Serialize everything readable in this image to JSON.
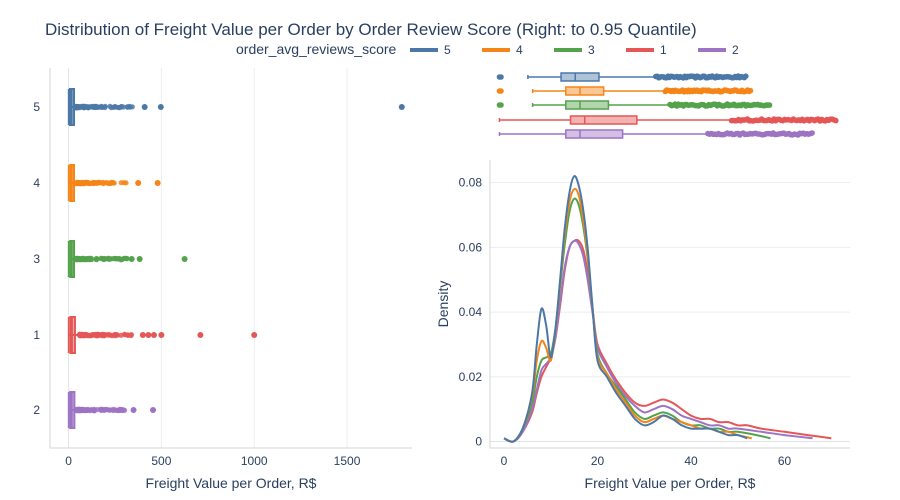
{
  "title": "Distribution of Freight Value per Order by Order Review Score (Right: to 0.95 Quantile)",
  "legend": {
    "title": "order_avg_reviews_score",
    "items": [
      {
        "label": "5",
        "color": "#4c78a8"
      },
      {
        "label": "4",
        "color": "#f58518"
      },
      {
        "label": "3",
        "color": "#54a24b"
      },
      {
        "label": "1",
        "color": "#e45756"
      },
      {
        "label": "2",
        "color": "#9d73c3"
      }
    ]
  },
  "chart_data": [
    {
      "type": "box",
      "orientation": "horizontal",
      "xlabel": "Freight Value per Order, R$",
      "xlim": [
        -100,
        1850
      ],
      "xticks": [
        0,
        500,
        1000,
        1500
      ],
      "categories": [
        "5",
        "4",
        "3",
        "1",
        "2"
      ],
      "grid": "vertical",
      "series": [
        {
          "name": "5",
          "color": "#4c78a8",
          "min": 0,
          "q1": 13,
          "median": 16,
          "q3": 24,
          "upper_fence": 40,
          "outlier_cluster_max": 345,
          "outliers": [
            410,
            497,
            1795
          ]
        },
        {
          "name": "4",
          "color": "#f58518",
          "min": 0,
          "q1": 14,
          "median": 17,
          "q3": 24,
          "upper_fence": 40,
          "outlier_cluster_max": 330,
          "outliers": [
            375,
            480
          ]
        },
        {
          "name": "3",
          "color": "#54a24b",
          "min": 0,
          "q1": 14,
          "median": 17,
          "q3": 24,
          "upper_fence": 40,
          "outlier_cluster_max": 320,
          "outliers": [
            340,
            383,
            625
          ]
        },
        {
          "name": "1",
          "color": "#e45756",
          "min": 0,
          "q1": 15,
          "median": 18,
          "q3": 29,
          "upper_fence": 60,
          "outlier_cluster_max": 360,
          "outliers": [
            400,
            430,
            460,
            500,
            710,
            1000
          ]
        },
        {
          "name": "2",
          "color": "#9d73c3",
          "min": 0,
          "q1": 14,
          "median": 17,
          "q3": 26,
          "upper_fence": 45,
          "outlier_cluster_max": 310,
          "outliers": [
            350,
            455
          ]
        }
      ]
    },
    {
      "type": "box",
      "orientation": "horizontal",
      "note_position": "marginal",
      "xlim": [
        -2,
        74
      ],
      "categories": [
        "5",
        "4",
        "3",
        "1",
        "2"
      ],
      "series": [
        {
          "name": "5",
          "color": "#4c78a8",
          "min": 0,
          "whisker_low": 6,
          "q1": 13,
          "median": 16,
          "q3": 21,
          "whisker_high": 33,
          "outlier_max": 52
        },
        {
          "name": "4",
          "color": "#f58518",
          "min": 0,
          "whisker_low": 7,
          "q1": 14,
          "median": 17,
          "q3": 22,
          "whisker_high": 35,
          "outlier_max": 53
        },
        {
          "name": "3",
          "color": "#54a24b",
          "min": 0,
          "whisker_low": 7,
          "q1": 14,
          "median": 17,
          "q3": 23,
          "whisker_high": 36,
          "outlier_max": 57
        },
        {
          "name": "1",
          "color": "#e45756",
          "whisker_low": 0,
          "q1": 15,
          "median": 18,
          "q3": 29,
          "whisker_high": 49,
          "outlier_max": 71
        },
        {
          "name": "2",
          "color": "#9d73c3",
          "whisker_low": 0,
          "q1": 14,
          "median": 17,
          "q3": 26,
          "whisker_high": 44,
          "outlier_max": 66
        }
      ]
    },
    {
      "type": "line",
      "subtype": "density",
      "xlabel": "Freight Value per Order, R$",
      "ylabel": "Density",
      "xlim": [
        -3,
        74
      ],
      "ylim": [
        -0.002,
        0.087
      ],
      "xticks": [
        0,
        20,
        40,
        60
      ],
      "yticks": [
        0,
        0.02,
        0.04,
        0.06,
        0.08
      ],
      "grid": "horizontal",
      "series": [
        {
          "name": "5",
          "color": "#4c78a8",
          "x": [
            0,
            2,
            4,
            6,
            7,
            8,
            9,
            10,
            11,
            12,
            13,
            14,
            15,
            16,
            17,
            18,
            19,
            20,
            22,
            24,
            26,
            28,
            30,
            32,
            34,
            36,
            38,
            40,
            42,
            44,
            46,
            48,
            50,
            52
          ],
          "y": [
            0.001,
            0.0,
            0.004,
            0.015,
            0.03,
            0.041,
            0.036,
            0.026,
            0.035,
            0.05,
            0.066,
            0.077,
            0.082,
            0.079,
            0.071,
            0.058,
            0.04,
            0.025,
            0.02,
            0.015,
            0.011,
            0.007,
            0.005,
            0.006,
            0.008,
            0.007,
            0.005,
            0.004,
            0.004,
            0.004,
            0.003,
            0.002,
            0.002,
            0.001
          ]
        },
        {
          "name": "4",
          "color": "#f58518",
          "x": [
            0,
            2,
            4,
            6,
            7,
            8,
            9,
            10,
            11,
            12,
            13,
            14,
            15,
            16,
            17,
            18,
            19,
            20,
            22,
            24,
            26,
            28,
            30,
            32,
            34,
            36,
            38,
            40,
            42,
            44,
            46,
            48,
            50,
            53
          ],
          "y": [
            0.001,
            0.0,
            0.004,
            0.014,
            0.025,
            0.031,
            0.029,
            0.025,
            0.034,
            0.049,
            0.064,
            0.074,
            0.078,
            0.076,
            0.068,
            0.056,
            0.04,
            0.026,
            0.021,
            0.016,
            0.012,
            0.008,
            0.006,
            0.007,
            0.008,
            0.007,
            0.006,
            0.005,
            0.004,
            0.004,
            0.003,
            0.003,
            0.002,
            0.001
          ]
        },
        {
          "name": "3",
          "color": "#54a24b",
          "x": [
            0,
            2,
            4,
            6,
            7,
            8,
            9,
            10,
            11,
            12,
            13,
            14,
            15,
            16,
            17,
            18,
            19,
            20,
            22,
            24,
            26,
            28,
            30,
            32,
            34,
            36,
            38,
            40,
            42,
            44,
            46,
            48,
            50,
            54,
            57
          ],
          "y": [
            0.001,
            0.0,
            0.004,
            0.012,
            0.02,
            0.025,
            0.026,
            0.027,
            0.035,
            0.048,
            0.061,
            0.071,
            0.075,
            0.073,
            0.066,
            0.055,
            0.04,
            0.027,
            0.021,
            0.017,
            0.013,
            0.009,
            0.007,
            0.008,
            0.009,
            0.008,
            0.006,
            0.005,
            0.005,
            0.004,
            0.004,
            0.003,
            0.003,
            0.002,
            0.001
          ]
        },
        {
          "name": "1",
          "color": "#e45756",
          "x": [
            0,
            2,
            4,
            6,
            7,
            8,
            9,
            10,
            11,
            12,
            13,
            14,
            15,
            16,
            17,
            18,
            19,
            20,
            22,
            24,
            26,
            28,
            30,
            32,
            34,
            36,
            38,
            40,
            42,
            44,
            46,
            48,
            50,
            52,
            55,
            60,
            65,
            70
          ],
          "y": [
            0.001,
            0.0,
            0.003,
            0.009,
            0.015,
            0.02,
            0.023,
            0.026,
            0.032,
            0.042,
            0.053,
            0.06,
            0.062,
            0.062,
            0.059,
            0.051,
            0.04,
            0.03,
            0.024,
            0.019,
            0.015,
            0.012,
            0.011,
            0.012,
            0.013,
            0.012,
            0.01,
            0.008,
            0.007,
            0.007,
            0.006,
            0.006,
            0.005,
            0.005,
            0.004,
            0.003,
            0.002,
            0.001
          ]
        },
        {
          "name": "2",
          "color": "#9d73c3",
          "x": [
            0,
            2,
            4,
            6,
            7,
            8,
            9,
            10,
            11,
            12,
            13,
            14,
            15,
            16,
            17,
            18,
            19,
            20,
            22,
            24,
            26,
            28,
            30,
            32,
            34,
            36,
            38,
            40,
            42,
            44,
            46,
            48,
            50,
            55,
            60,
            66
          ],
          "y": [
            0.001,
            0.0,
            0.003,
            0.01,
            0.016,
            0.022,
            0.024,
            0.026,
            0.032,
            0.043,
            0.054,
            0.06,
            0.062,
            0.061,
            0.057,
            0.049,
            0.039,
            0.029,
            0.023,
            0.018,
            0.014,
            0.011,
            0.009,
            0.01,
            0.011,
            0.01,
            0.008,
            0.007,
            0.006,
            0.005,
            0.005,
            0.004,
            0.004,
            0.003,
            0.002,
            0.001
          ]
        }
      ]
    }
  ]
}
